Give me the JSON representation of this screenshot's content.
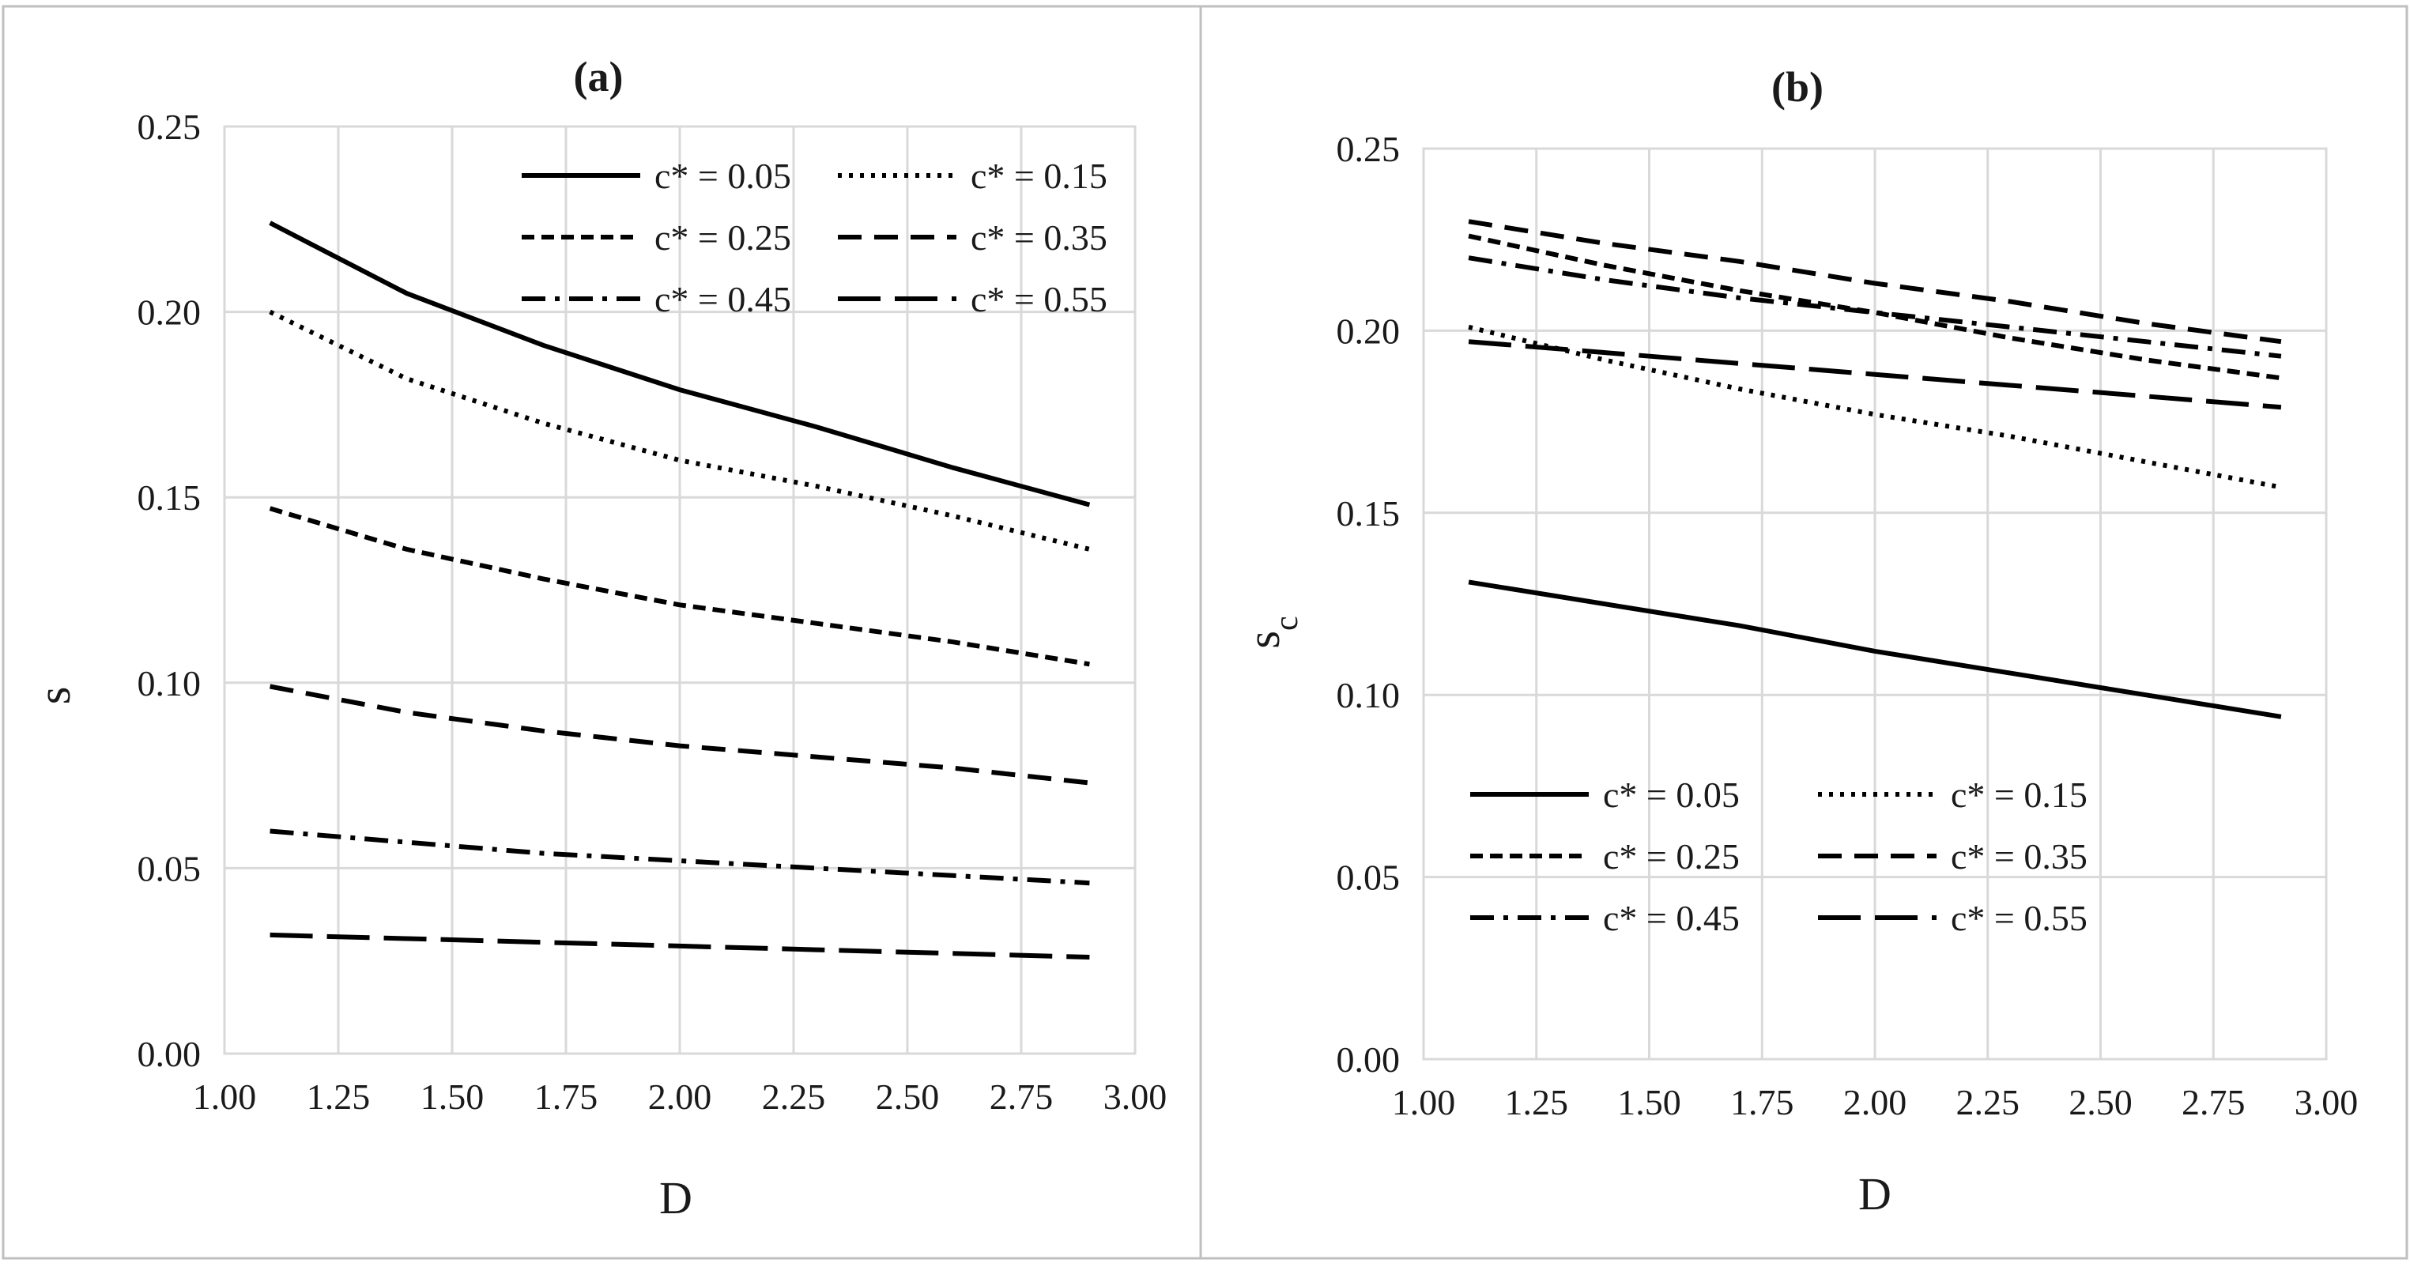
{
  "chart_data": [
    {
      "type": "line",
      "title": "(a)",
      "xlabel": "D",
      "ylabel": "s",
      "ylabel_sub": "",
      "xlim": [
        1.0,
        3.0
      ],
      "ylim": [
        0.0,
        0.25
      ],
      "x_ticks": [
        "1.00",
        "1.25",
        "1.50",
        "1.75",
        "2.00",
        "2.25",
        "2.50",
        "2.75",
        "3.00"
      ],
      "y_ticks": [
        "0.00",
        "0.05",
        "0.10",
        "0.15",
        "0.20",
        "0.25"
      ],
      "grid": true,
      "legend_position": "top-right",
      "x": [
        1.1,
        1.4,
        1.7,
        2.0,
        2.3,
        2.6,
        2.9
      ],
      "series": [
        {
          "name": "c* = 0.05",
          "style": "solid",
          "values": [
            0.224,
            0.205,
            0.191,
            0.179,
            0.169,
            0.158,
            0.148
          ]
        },
        {
          "name": "c* = 0.15",
          "style": "dotted",
          "values": [
            0.2,
            0.182,
            0.17,
            0.16,
            0.153,
            0.145,
            0.136
          ]
        },
        {
          "name": "c* = 0.25",
          "style": "short-dash",
          "values": [
            0.147,
            0.136,
            0.128,
            0.121,
            0.116,
            0.111,
            0.105
          ]
        },
        {
          "name": "c* = 0.35",
          "style": "dash",
          "values": [
            0.099,
            0.092,
            0.087,
            0.083,
            0.08,
            0.077,
            0.073
          ]
        },
        {
          "name": "c* = 0.45",
          "style": "dash-dot",
          "values": [
            0.06,
            0.057,
            0.054,
            0.052,
            0.05,
            0.048,
            0.046
          ]
        },
        {
          "name": "c* = 0.55",
          "style": "long-dash",
          "values": [
            0.032,
            0.031,
            0.03,
            0.029,
            0.028,
            0.027,
            0.026
          ]
        }
      ]
    },
    {
      "type": "line",
      "title": "(b)",
      "xlabel": "D",
      "ylabel": "s",
      "ylabel_sub": "c",
      "xlim": [
        1.0,
        3.0
      ],
      "ylim": [
        0.0,
        0.25
      ],
      "x_ticks": [
        "1.00",
        "1.25",
        "1.50",
        "1.75",
        "2.00",
        "2.25",
        "2.50",
        "2.75",
        "3.00"
      ],
      "y_ticks": [
        "0.00",
        "0.05",
        "0.10",
        "0.15",
        "0.20",
        "0.25"
      ],
      "grid": true,
      "legend_position": "bottom-left",
      "x": [
        1.1,
        1.4,
        1.7,
        2.0,
        2.3,
        2.6,
        2.9
      ],
      "series": [
        {
          "name": "c* = 0.05",
          "style": "solid",
          "values": [
            0.131,
            0.125,
            0.119,
            0.112,
            0.106,
            0.1,
            0.094
          ]
        },
        {
          "name": "c* = 0.15",
          "style": "dotted",
          "values": [
            0.201,
            0.192,
            0.184,
            0.177,
            0.171,
            0.164,
            0.157
          ]
        },
        {
          "name": "c* = 0.25",
          "style": "short-dash",
          "values": [
            0.226,
            0.218,
            0.211,
            0.205,
            0.198,
            0.192,
            0.187
          ]
        },
        {
          "name": "c* = 0.35",
          "style": "dash",
          "values": [
            0.23,
            0.224,
            0.219,
            0.213,
            0.208,
            0.202,
            0.197
          ]
        },
        {
          "name": "c* = 0.45",
          "style": "dash-dot",
          "values": [
            0.22,
            0.214,
            0.209,
            0.205,
            0.201,
            0.197,
            0.193
          ]
        },
        {
          "name": "c* = 0.55",
          "style": "long-dash",
          "values": [
            0.197,
            0.194,
            0.191,
            0.188,
            0.185,
            0.182,
            0.179
          ]
        }
      ]
    }
  ]
}
